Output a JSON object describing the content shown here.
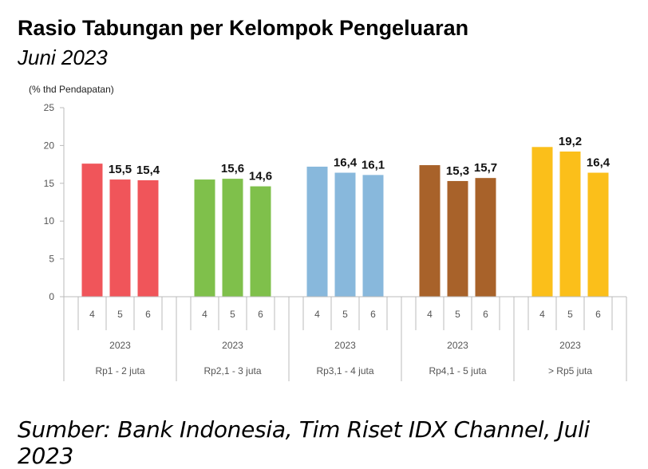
{
  "header": {
    "title": "Rasio Tabungan per Kelompok Pengeluaran",
    "subtitle": "Juni 2023"
  },
  "footer": {
    "source": "Sumber: Bank Indonesia, Tim Riset IDX Channel, Juli 2023"
  },
  "chart_data": {
    "type": "bar",
    "title": "Rasio Tabungan per Kelompok Pengeluaran",
    "subtitle": "Juni 2023",
    "ylabel": "(% thd Pendapatan)",
    "xlabel": "",
    "ylim": [
      0,
      25
    ],
    "yticks": [
      0,
      5,
      10,
      15,
      20,
      25
    ],
    "grid": false,
    "legend": "none",
    "groups": [
      {
        "name": "Rp1 - 2 juta",
        "year": "2023",
        "color": "#f0555a",
        "bars": [
          {
            "month": "4",
            "value": 17.6,
            "label": ""
          },
          {
            "month": "5",
            "value": 15.5,
            "label": "15,5"
          },
          {
            "month": "6",
            "value": 15.4,
            "label": "15,4"
          }
        ]
      },
      {
        "name": "Rp2,1 - 3 juta",
        "year": "2023",
        "color": "#7fc04b",
        "bars": [
          {
            "month": "4",
            "value": 15.5,
            "label": ""
          },
          {
            "month": "5",
            "value": 15.6,
            "label": "15,6"
          },
          {
            "month": "6",
            "value": 14.6,
            "label": "14,6"
          }
        ]
      },
      {
        "name": "Rp3,1 - 4 juta",
        "year": "2023",
        "color": "#88b8dc",
        "bars": [
          {
            "month": "4",
            "value": 17.2,
            "label": ""
          },
          {
            "month": "5",
            "value": 16.4,
            "label": "16,4"
          },
          {
            "month": "6",
            "value": 16.1,
            "label": "16,1"
          }
        ]
      },
      {
        "name": "Rp4,1 - 5 juta",
        "year": "2023",
        "color": "#a8622a",
        "bars": [
          {
            "month": "4",
            "value": 17.4,
            "label": ""
          },
          {
            "month": "5",
            "value": 15.3,
            "label": "15,3"
          },
          {
            "month": "6",
            "value": 15.7,
            "label": "15,7"
          }
        ]
      },
      {
        "name": "> Rp5 juta",
        "year": "2023",
        "color": "#fbbf1a",
        "bars": [
          {
            "month": "4",
            "value": 19.8,
            "label": ""
          },
          {
            "month": "5",
            "value": 19.2,
            "label": "19,2"
          },
          {
            "month": "6",
            "value": 16.4,
            "label": "16,4"
          }
        ]
      }
    ]
  }
}
